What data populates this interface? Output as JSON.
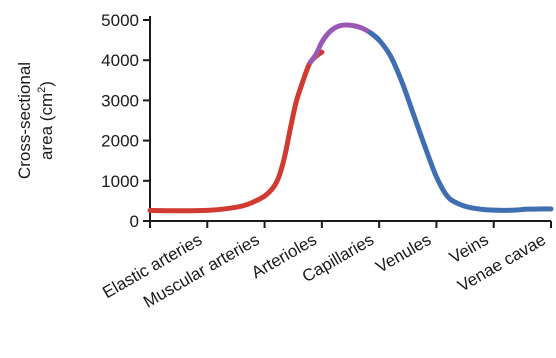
{
  "chart_data": {
    "type": "line",
    "ylabel_line1": "Cross-sectional",
    "ylabel_line2_prefix": "area (cm",
    "ylabel_sup": "2",
    "ylabel_line2_suffix": ")",
    "ylim": [
      0,
      5000
    ],
    "yticks": [
      "0",
      "1000",
      "2000",
      "3000",
      "4000",
      "5000"
    ],
    "categories": [
      "Elastic arteries",
      "Muscular arteries",
      "Arterioles",
      "Capillaries",
      "Venules",
      "Veins",
      "Venae cavae"
    ],
    "colors": {
      "arterial": "#d03a31",
      "capillary": "#9b59b6",
      "venous": "#3f6fb0"
    },
    "series": [
      {
        "segment": "arterial",
        "x": [
          0.0,
          0.6,
          1.0,
          1.3,
          1.6,
          1.8,
          2.0,
          2.15,
          2.25,
          2.35,
          2.45,
          2.55,
          2.65,
          2.75,
          2.8,
          2.9,
          3.0
        ],
        "y": [
          260,
          255,
          265,
          300,
          370,
          470,
          620,
          830,
          1100,
          1600,
          2300,
          2950,
          3400,
          3800,
          3950,
          4100,
          4200
        ]
      },
      {
        "segment": "capillary",
        "x": [
          2.8,
          2.9,
          3.0,
          3.1,
          3.2,
          3.3,
          3.4,
          3.55,
          3.7,
          3.85,
          4.0
        ],
        "y": [
          3950,
          4150,
          4450,
          4650,
          4780,
          4850,
          4875,
          4860,
          4800,
          4680,
          4500
        ]
      },
      {
        "segment": "venous",
        "x": [
          3.85,
          4.0,
          4.2,
          4.4,
          4.6,
          4.8,
          5.0,
          5.2,
          5.4,
          5.6,
          5.8,
          6.0,
          6.2,
          6.4,
          6.6,
          6.8,
          7.0
        ],
        "y": [
          4680,
          4500,
          4100,
          3450,
          2650,
          1850,
          1100,
          600,
          420,
          330,
          290,
          270,
          265,
          275,
          295,
          300,
          300
        ]
      }
    ]
  }
}
